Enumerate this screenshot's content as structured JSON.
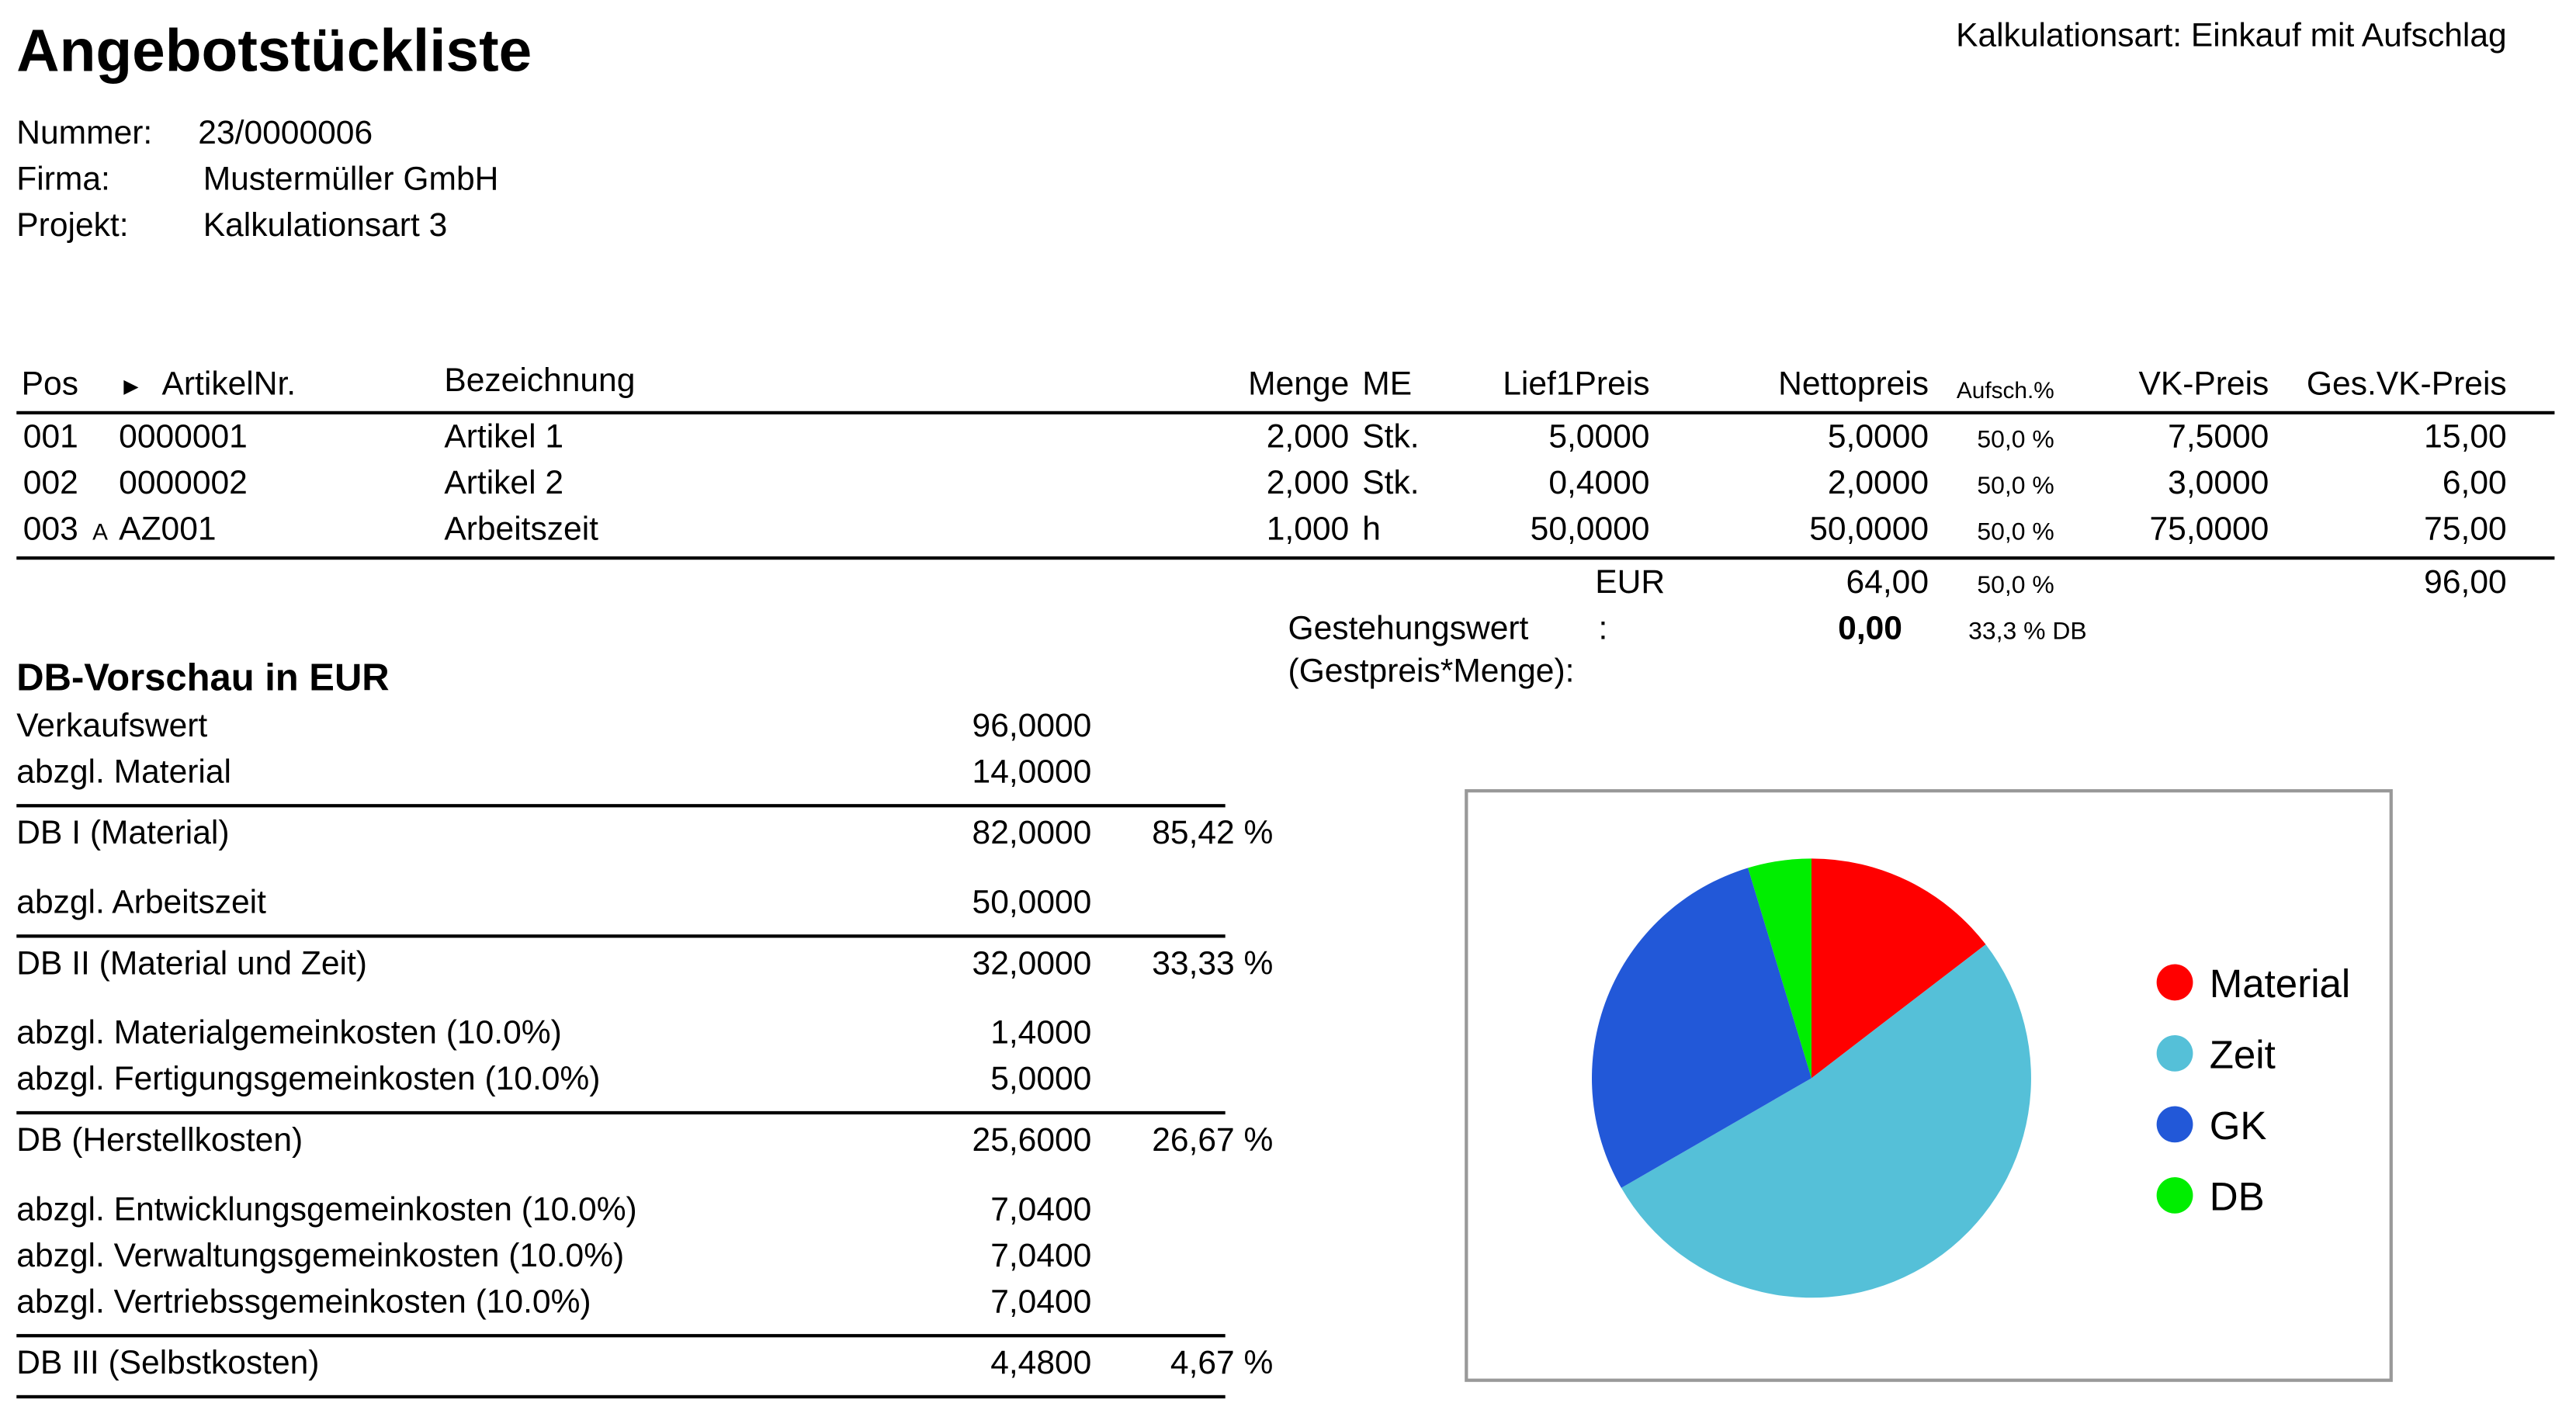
{
  "title": "Angebotstückliste",
  "kalkulationsart": "Kalkulationsart: Einkauf mit Aufschlag",
  "meta": [
    {
      "label": "Nummer:",
      "value": "23/0000006"
    },
    {
      "label": "Firma:",
      "value": "Mustermüller GmbH"
    },
    {
      "label": "Projekt:",
      "value": "Kalkulationsart 3"
    }
  ],
  "table": {
    "headers": {
      "pos": "Pos",
      "sort_marker": "►",
      "artikel": "ArtikelNr.",
      "bez": "Bezeichnung",
      "menge": "Menge",
      "me": "ME",
      "lief": "Lief1Preis",
      "netto": "Nettopreis",
      "aufsch": "Aufsch.%",
      "vk": "VK-Preis",
      "gesvk": "Ges.VK-Preis"
    },
    "rows": [
      {
        "pos": "001",
        "flag": "",
        "artikel": "0000001",
        "bez": "Artikel 1",
        "menge": "2,000",
        "me": "Stk.",
        "lief": "5,0000",
        "netto": "5,0000",
        "aufsch": "50,0 %",
        "vk": "7,5000",
        "gesvk": "15,00"
      },
      {
        "pos": "002",
        "flag": "",
        "artikel": "0000002",
        "bez": "Artikel 2",
        "menge": "2,000",
        "me": "Stk.",
        "lief": "0,4000",
        "netto": "2,0000",
        "aufsch": "50,0 %",
        "vk": "3,0000",
        "gesvk": "6,00"
      },
      {
        "pos": "003",
        "flag": "A",
        "artikel": "AZ001",
        "bez": "Arbeitszeit",
        "menge": "1,000",
        "me": "h",
        "lief": "50,0000",
        "netto": "50,0000",
        "aufsch": "50,0 %",
        "vk": "75,0000",
        "gesvk": "75,00"
      }
    ],
    "totals": {
      "currency": "EUR",
      "netto": "64,00",
      "aufsch": "50,0 %",
      "gesvk": "96,00"
    },
    "gestehung": {
      "label": "Gestehungswert",
      "colon": ":",
      "sub": "(Gestpreis*Menge):",
      "value": "0,00",
      "db": "33,3 % DB"
    }
  },
  "db": {
    "title": "DB-Vorschau in EUR",
    "rows": [
      {
        "label": "Verkaufswert",
        "value": "96,0000",
        "pct": ""
      },
      {
        "label": "abzgl. Material",
        "value": "14,0000",
        "pct": ""
      },
      {
        "label": "DB I (Material)",
        "value": "82,0000",
        "pct": "85,42 %"
      },
      {
        "label": "abzgl. Arbeitszeit",
        "value": "50,0000",
        "pct": ""
      },
      {
        "label": "DB II (Material und Zeit)",
        "value": "32,0000",
        "pct": "33,33 %"
      },
      {
        "label": "abzgl. Materialgemeinkosten (10.0%)",
        "value": "1,4000",
        "pct": ""
      },
      {
        "label": "abzgl. Fertigungsgemeinkosten (10.0%)",
        "value": "5,0000",
        "pct": ""
      },
      {
        "label": "DB (Herstellkosten)",
        "value": "25,6000",
        "pct": "26,67 %"
      },
      {
        "label": "abzgl. Entwicklungsgemeinkosten (10.0%)",
        "value": "7,0400",
        "pct": ""
      },
      {
        "label": "abzgl. Verwaltungsgemeinkosten (10.0%)",
        "value": "7,0400",
        "pct": ""
      },
      {
        "label": "abzgl. Vertriebssgemeinkosten (10.0%)",
        "value": "7,0400",
        "pct": ""
      },
      {
        "label": "DB III (Selbstkosten)",
        "value": "4,4800",
        "pct": "4,67 %"
      }
    ]
  },
  "chart_data": {
    "type": "pie",
    "title": "",
    "legend_position": "right",
    "categories": [
      "Material",
      "Zeit",
      "GK",
      "DB"
    ],
    "values": [
      14,
      50,
      27.52,
      4.48
    ],
    "colors": [
      "#ff0000",
      "#55c0d8",
      "#2258d8",
      "#00ee00"
    ]
  }
}
